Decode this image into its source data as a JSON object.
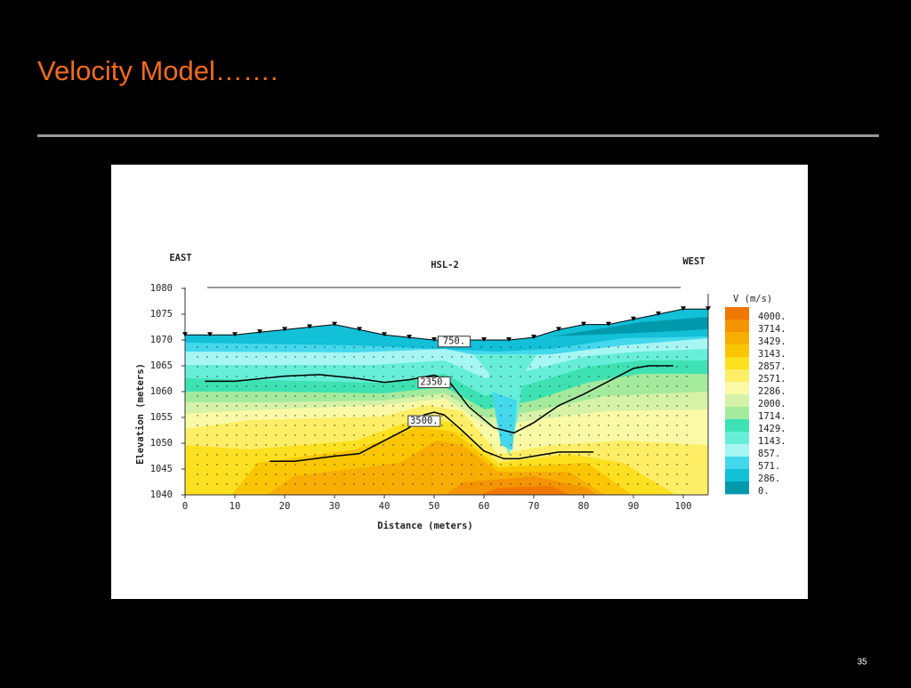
{
  "slide": {
    "title": "Velocity Model…….",
    "page_number": "35"
  },
  "chart_data": {
    "type": "contour",
    "title": "HSL-2",
    "annotations": [
      "EAST",
      "WEST"
    ],
    "xlabel": "Distance (meters)",
    "ylabel": "Elevation (meters)",
    "xlim": [
      0,
      105
    ],
    "ylim": [
      1040,
      1080
    ],
    "xticks": [
      0,
      10,
      20,
      30,
      40,
      50,
      60,
      70,
      80,
      90,
      100
    ],
    "yticks": [
      1040,
      1045,
      1050,
      1055,
      1060,
      1065,
      1070,
      1075,
      1080
    ],
    "colorbar": {
      "title": "V (m/s)",
      "levels": [
        {
          "value": 4000,
          "label": "4000.",
          "color": "#f07800"
        },
        {
          "value": 3714,
          "label": "3714.",
          "color": "#f49400"
        },
        {
          "value": 3429,
          "label": "3429.",
          "color": "#f7ae00"
        },
        {
          "value": 3143,
          "label": "3143.",
          "color": "#fac600"
        },
        {
          "value": 2857,
          "label": "2857.",
          "color": "#fde020"
        },
        {
          "value": 2571,
          "label": "2571.",
          "color": "#fdee66"
        },
        {
          "value": 2286,
          "label": "2286.",
          "color": "#fafaa6"
        },
        {
          "value": 2000,
          "label": "2000.",
          "color": "#d6f2a6"
        },
        {
          "value": 1714,
          "label": "1714.",
          "color": "#a4ea9c"
        },
        {
          "value": 1429,
          "label": "1429.",
          "color": "#3ee2b2"
        },
        {
          "value": 1143,
          "label": "1143.",
          "color": "#66eed8"
        },
        {
          "value": 857,
          "label": "857.",
          "color": "#a6f6f4"
        },
        {
          "value": 571,
          "label": "571.",
          "color": "#44d8ec"
        },
        {
          "value": 286,
          "label": "286.",
          "color": "#12c0d8"
        },
        {
          "value": 0,
          "label": "0.",
          "color": "#009aac"
        }
      ]
    },
    "topography": {
      "color": "#000000",
      "x": [
        0,
        5,
        10,
        15,
        20,
        25,
        30,
        35,
        40,
        45,
        50,
        55,
        60,
        65,
        70,
        75,
        80,
        85,
        90,
        95,
        100,
        105
      ],
      "y": [
        1071,
        1071,
        1071,
        1071.5,
        1072,
        1072.5,
        1073,
        1072,
        1071,
        1070.5,
        1070,
        1070,
        1070,
        1070,
        1070.5,
        1072,
        1073,
        1073,
        1074,
        1075,
        1076,
        1076
      ]
    },
    "contours": [
      {
        "value": 2350,
        "color": "#000000",
        "x": [
          4,
          10,
          20,
          27,
          35,
          40,
          45,
          50,
          53,
          57,
          62,
          66,
          70,
          75,
          80,
          85,
          90,
          93,
          98
        ],
        "y": [
          1062,
          1062,
          1063,
          1063.3,
          1062.5,
          1061.8,
          1062.3,
          1063.2,
          1062,
          1057,
          1053,
          1052,
          1054,
          1057.3,
          1059.5,
          1062,
          1064.5,
          1065,
          1065
        ]
      },
      {
        "value": 3500,
        "color": "#000000",
        "x": [
          17,
          22,
          30,
          35,
          40,
          45,
          48,
          50,
          52,
          55,
          60,
          64,
          67,
          70,
          75,
          80,
          82
        ],
        "y": [
          1046.5,
          1046.5,
          1047.5,
          1048,
          1050.5,
          1053,
          1055.5,
          1056,
          1055.5,
          1053,
          1048.5,
          1047,
          1047,
          1047.5,
          1048.3,
          1048.3,
          1048.3
        ]
      }
    ],
    "contour_labels": [
      {
        "value": 750,
        "label": "750.",
        "x": 54,
        "y": 1069.7
      },
      {
        "value": 2350,
        "label": "2350.",
        "x": 50,
        "y": 1061.8
      },
      {
        "value": 3500,
        "label": "3500.",
        "x": 48,
        "y": 1054.3
      }
    ]
  }
}
